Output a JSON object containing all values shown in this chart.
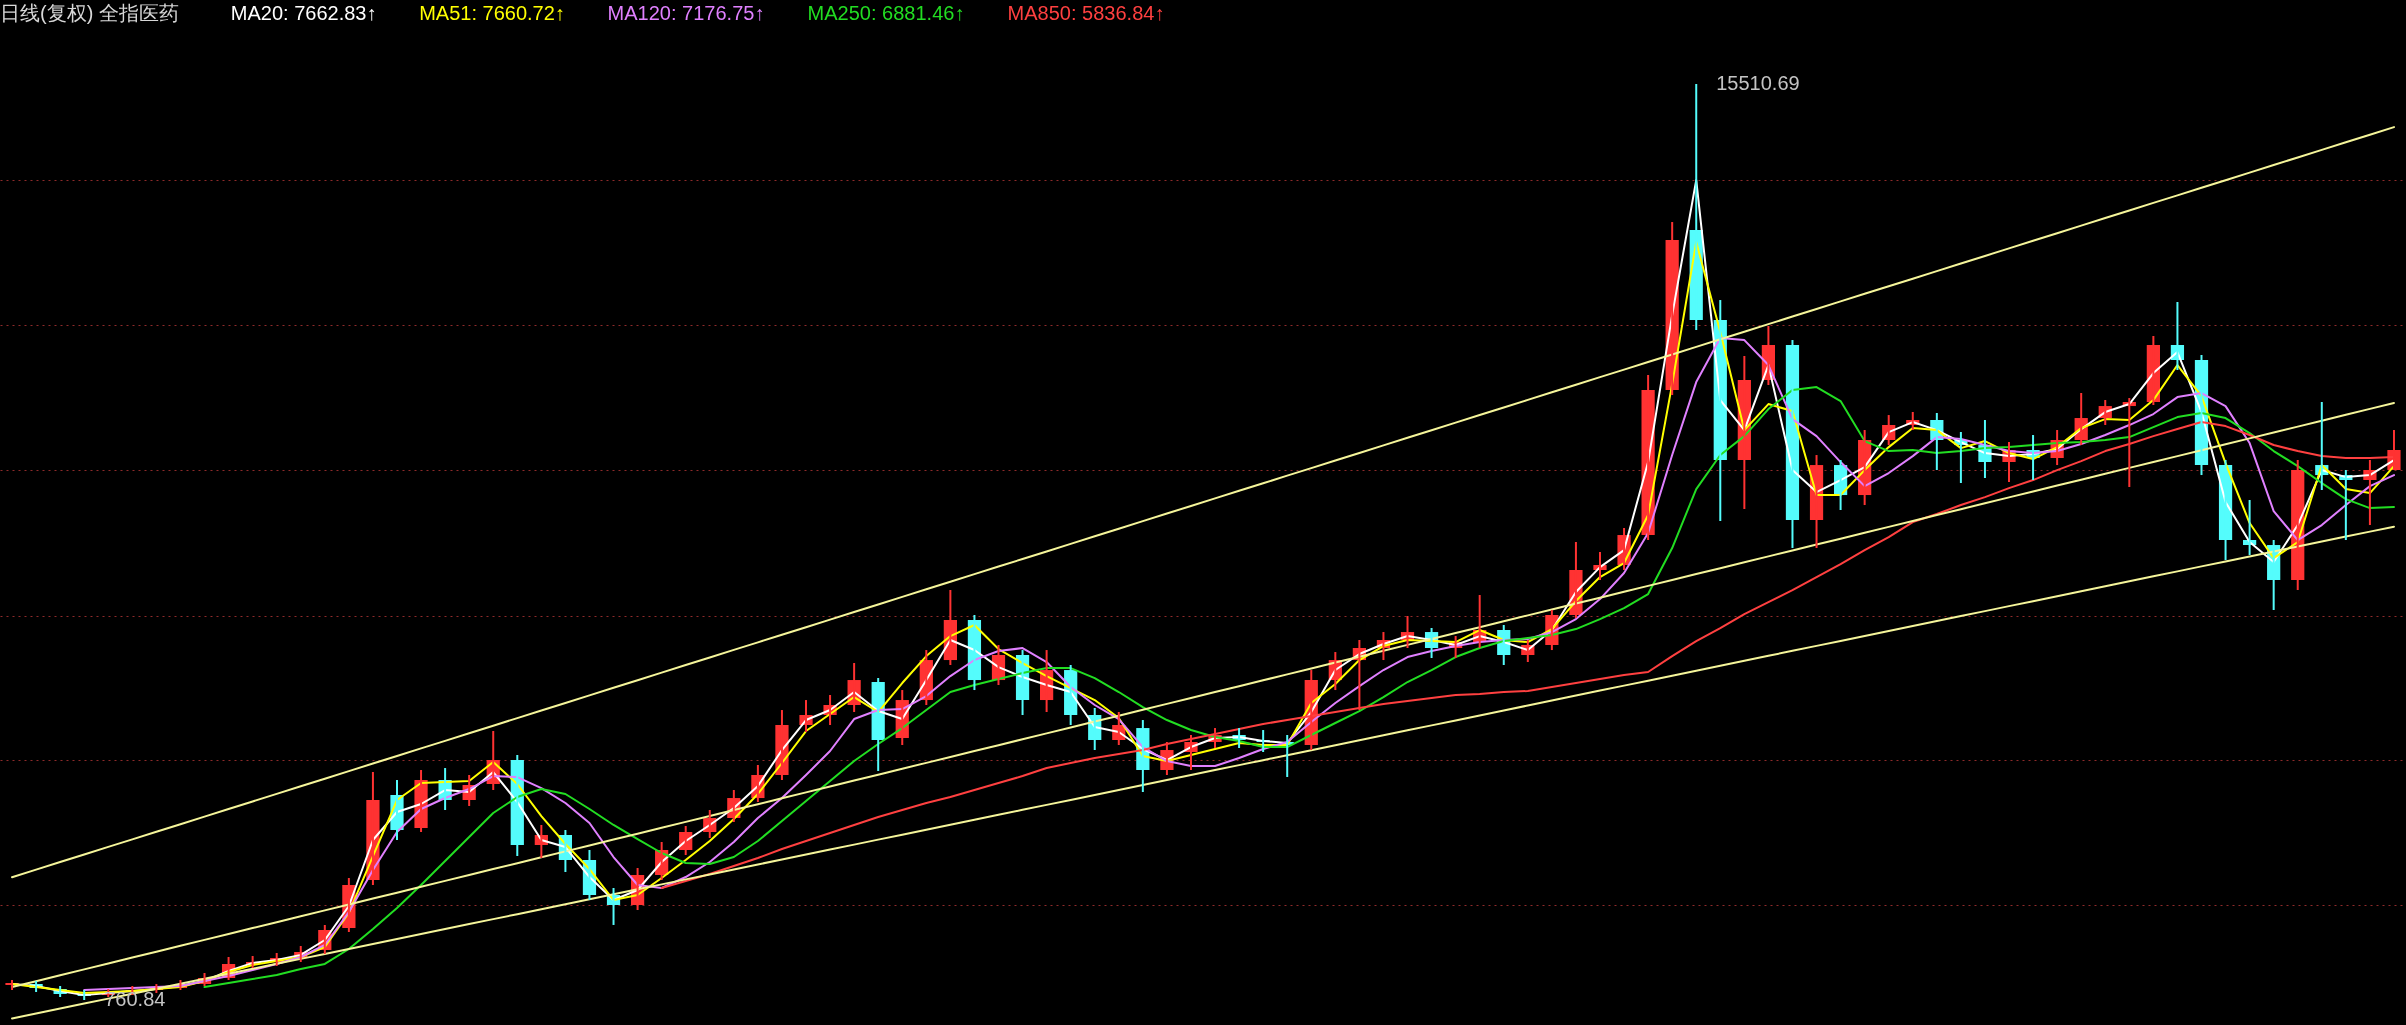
{
  "chart_data": {
    "type": "candlestick",
    "title": "日线(复权) 全指医药",
    "categories": [
      null,
      null,
      null,
      null,
      null,
      null,
      null,
      null,
      null,
      null,
      null,
      null,
      null,
      null,
      null,
      null,
      null,
      null,
      null,
      null,
      null,
      null,
      null,
      null,
      null,
      null,
      null,
      null,
      null,
      null,
      null,
      null,
      null,
      null,
      null,
      null,
      null,
      null,
      null,
      null,
      null,
      null,
      null,
      null,
      null,
      null,
      null,
      null,
      null,
      null,
      null,
      null,
      null,
      null,
      null,
      null,
      null,
      null,
      null,
      null,
      null,
      null,
      null,
      null,
      null,
      null,
      null,
      null,
      null,
      null,
      null,
      null,
      null,
      null,
      null,
      null,
      null,
      null,
      null,
      null,
      null,
      null,
      null,
      null,
      null,
      null,
      null,
      null,
      null,
      null,
      null,
      null,
      null,
      null,
      null,
      null,
      null,
      null,
      null,
      null
    ],
    "yticks": [
      {
        "value": 2284,
        "label": null
      },
      {
        "value": 4622,
        "label": null
      },
      {
        "value": 6950,
        "label": null
      },
      {
        "value": 9295,
        "label": null
      },
      {
        "value": 11630,
        "label": null
      },
      {
        "value": 13964,
        "label": null
      }
    ],
    "grid": "y",
    "legend": "top left",
    "annotations": [
      "15510.69",
      "760.84"
    ],
    "ohlc": [
      [
        1002,
        1083,
        922,
        1035
      ],
      [
        1018,
        1067,
        890,
        954
      ],
      [
        938,
        986,
        809,
        857
      ],
      [
        857,
        922,
        760.84,
        825
      ],
      [
        841,
        938,
        809,
        890
      ],
      [
        890,
        986,
        841,
        922
      ],
      [
        922,
        1018,
        874,
        954
      ],
      [
        954,
        1083,
        922,
        1018
      ],
      [
        1018,
        1196,
        986,
        1115
      ],
      [
        1115,
        1453,
        1083,
        1341
      ],
      [
        1341,
        1469,
        1276,
        1373
      ],
      [
        1373,
        1518,
        1308,
        1437
      ],
      [
        1437,
        1630,
        1373,
        1534
      ],
      [
        1566,
        1969,
        1502,
        1888
      ],
      [
        1920,
        2725,
        1856,
        2613
      ],
      [
        2693,
        4432,
        2613,
        3981
      ],
      [
        4062,
        4303,
        3337,
        3498
      ],
      [
        3530,
        4464,
        3466,
        4303
      ],
      [
        4303,
        4496,
        3820,
        3981
      ],
      [
        3981,
        4384,
        3885,
        4223
      ],
      [
        4239,
        5092,
        4142,
        4625
      ],
      [
        4625,
        4706,
        3080,
        3257
      ],
      [
        3257,
        3579,
        3047,
        3418
      ],
      [
        3418,
        3498,
        2822,
        3015
      ],
      [
        3015,
        3176,
        2371,
        2452
      ],
      [
        2452,
        2564,
        1969,
        2291
      ],
      [
        2291,
        2886,
        2210,
        2774
      ],
      [
        2774,
        3305,
        2693,
        3176
      ],
      [
        3176,
        3563,
        3096,
        3466
      ],
      [
        3466,
        3820,
        3369,
        3691
      ],
      [
        3691,
        4142,
        3627,
        4013
      ],
      [
        4013,
        4545,
        3949,
        4384
      ],
      [
        4384,
        5430,
        4303,
        5189
      ],
      [
        5189,
        5591,
        5076,
        5350
      ],
      [
        5350,
        5672,
        5189,
        5511
      ],
      [
        5511,
        6187,
        5398,
        5913
      ],
      [
        5881,
        5946,
        4448,
        4947
      ],
      [
        4980,
        5752,
        4867,
        5591
      ],
      [
        5591,
        6396,
        5511,
        6235
      ],
      [
        6235,
        7363,
        6155,
        6880
      ],
      [
        6880,
        6960,
        5752,
        5913
      ],
      [
        5913,
        6477,
        5833,
        6316
      ],
      [
        6316,
        6396,
        5350,
        5591
      ],
      [
        5591,
        6396,
        5398,
        6074
      ],
      [
        6074,
        6155,
        5189,
        5350
      ],
      [
        5350,
        5463,
        4786,
        4947
      ],
      [
        4947,
        5398,
        4867,
        5189
      ],
      [
        5140,
        5269,
        4110,
        4464
      ],
      [
        4464,
        4915,
        4384,
        4786
      ],
      [
        4754,
        5028,
        4464,
        4915
      ],
      [
        4915,
        5140,
        4819,
        5028
      ],
      [
        5028,
        5140,
        4819,
        4947
      ],
      [
        4947,
        5108,
        4754,
        4915
      ],
      [
        4915,
        5028,
        4352,
        4867
      ],
      [
        4867,
        6074,
        4786,
        5913
      ],
      [
        5913,
        6364,
        5752,
        6235
      ],
      [
        6235,
        6558,
        5430,
        6429
      ],
      [
        6429,
        6686,
        6235,
        6558
      ],
      [
        6558,
        6944,
        6429,
        6686
      ],
      [
        6686,
        6751,
        6268,
        6429
      ],
      [
        6429,
        6622,
        6268,
        6525
      ],
      [
        6525,
        7282,
        6429,
        6719
      ],
      [
        6719,
        6799,
        6155,
        6316
      ],
      [
        6316,
        6558,
        6203,
        6477
      ],
      [
        6477,
        7041,
        6396,
        6960
      ],
      [
        6960,
        8136,
        6912,
        7685
      ],
      [
        7685,
        7975,
        7524,
        7765
      ],
      [
        7765,
        8361,
        7685,
        8248
      ],
      [
        8248,
        10825,
        8168,
        10583
      ],
      [
        10583,
        13288,
        10503,
        12998
      ],
      [
        13159,
        15510.69,
        11549,
        11710
      ],
      [
        11710,
        12032,
        8474,
        9456
      ],
      [
        9456,
        11131,
        8667,
        10744
      ],
      [
        10744,
        11614,
        10664,
        11308
      ],
      [
        11308,
        11388,
        8039,
        8490
      ],
      [
        8490,
        9536,
        8039,
        9375
      ],
      [
        9375,
        9456,
        8651,
        8892
      ],
      [
        8892,
        9939,
        8731,
        9778
      ],
      [
        9778,
        10180,
        9697,
        10020
      ],
      [
        10020,
        10229,
        9939,
        10100
      ],
      [
        10100,
        10213,
        9295,
        9778
      ],
      [
        9778,
        9907,
        9086,
        9697
      ],
      [
        9697,
        10100,
        9166,
        9424
      ],
      [
        9424,
        9746,
        9102,
        9617
      ],
      [
        9617,
        9858,
        9134,
        9488
      ],
      [
        9488,
        9939,
        9375,
        9778
      ],
      [
        9778,
        10535,
        9697,
        10132
      ],
      [
        10132,
        10422,
        10020,
        10325
      ],
      [
        10325,
        10454,
        9021,
        10390
      ],
      [
        10390,
        11453,
        10342,
        11308
      ],
      [
        11308,
        12000,
        10905,
        11066
      ],
      [
        11066,
        11147,
        9214,
        9375
      ],
      [
        9375,
        9456,
        7846,
        8168
      ],
      [
        8168,
        8812,
        7926,
        8087
      ],
      [
        8087,
        8168,
        7041,
        7524
      ],
      [
        7524,
        9456,
        7363,
        9295
      ],
      [
        9375,
        10390,
        8973,
        9214
      ],
      [
        9214,
        9295,
        8168,
        9134
      ],
      [
        9134,
        9456,
        8409,
        9295
      ],
      [
        9295,
        9939,
        9295,
        9617
      ]
    ],
    "colors": [
      "#ff3232",
      "#54fcfc",
      "#54fcfc",
      "#54fcfc",
      "#ff3232",
      "#ff3232",
      "#ff3232",
      "#ff3232",
      "#ff3232",
      "#ff3232",
      "#ff3232",
      "#ff3232",
      "#ff3232",
      "#ff3232",
      "#ff3232",
      "#ff3232",
      "#54fcfc",
      "#ff3232",
      "#54fcfc",
      "#ff3232",
      "#ff3232",
      "#54fcfc",
      "#ff3232",
      "#54fcfc",
      "#54fcfc",
      "#54fcfc",
      "#ff3232",
      "#ff3232",
      "#ff3232",
      "#ff3232",
      "#ff3232",
      "#ff3232",
      "#ff3232",
      "#ff3232",
      "#ff3232",
      "#ff3232",
      "#54fcfc",
      "#ff3232",
      "#ff3232",
      "#ff3232",
      "#54fcfc",
      "#ff3232",
      "#54fcfc",
      "#ff3232",
      "#54fcfc",
      "#54fcfc",
      "#ff3232",
      "#54fcfc",
      "#ff3232",
      "#ff3232",
      "#ff3232",
      "#54fcfc",
      "#54fcfc",
      "#54fcfc",
      "#ff3232",
      "#ff3232",
      "#ff3232",
      "#ff3232",
      "#ff3232",
      "#54fcfc",
      "#ff3232",
      "#ff3232",
      "#54fcfc",
      "#ff3232",
      "#ff3232",
      "#ff3232",
      "#ff3232",
      "#ff3232",
      "#ff3232",
      "#ff3232",
      "#54fcfc",
      "#54fcfc",
      "#ff3232",
      "#ff3232",
      "#54fcfc",
      "#ff3232",
      "#54fcfc",
      "#ff3232",
      "#ff3232",
      "#ff3232",
      "#54fcfc",
      "#54fcfc",
      "#54fcfc",
      "#ff3232",
      "#54fcfc",
      "#ff3232",
      "#ff3232",
      "#ff3232",
      "#ff3232",
      "#ff3232",
      "#54fcfc",
      "#54fcfc",
      "#54fcfc",
      "#54fcfc",
      "#54fcfc",
      "#ff3232",
      "#54fcfc",
      "#54fcfc",
      "#ff3232",
      "#ff3232"
    ],
    "series": [
      {
        "type": "line",
        "name": "MA20: 7662.83↑",
        "color": "#ffffff",
        "values": [
          1019,
          986,
          906,
          841,
          874,
          906,
          938,
          986,
          1067,
          1228,
          1357,
          1405,
          1486,
          1727,
          2274,
          3337,
          3788,
          3917,
          4142,
          4110,
          4432,
          3949,
          3337,
          3224,
          2741,
          2371,
          2532,
          2983,
          3321,
          3579,
          3852,
          4206,
          4786,
          5269,
          5430,
          5720,
          5414,
          5285,
          5913,
          6557,
          6396,
          6122,
          5961,
          5833,
          5720,
          5156,
          5076,
          4802,
          4625,
          4834,
          4979,
          4995,
          4931,
          4899,
          5398,
          6074,
          6332,
          6493,
          6621,
          6557,
          6477,
          6621,
          6525,
          6396,
          6718,
          7330,
          7732,
          8006,
          9423,
          11790,
          13963,
          10421,
          9938,
          10985,
          9294,
          8940,
          9133,
          9342,
          9906,
          10067,
          9938,
          9745,
          9568,
          9519,
          9552,
          9632,
          9954,
          10228,
          10357,
          10856,
          11194,
          10228,
          8779,
          8135,
          7813,
          8409,
          9294,
          9181,
          9214,
          9455
        ]
      },
      {
        "type": "line",
        "name": "MA51: 7660.72↑",
        "color": "#ffff00",
        "values": [
          1019,
          970,
          922,
          874,
          890,
          906,
          938,
          970,
          1067,
          1212,
          1325,
          1389,
          1453,
          1614,
          2162,
          3079,
          3981,
          4255,
          4271,
          4287,
          4593,
          4239,
          3723,
          3273,
          2870,
          2371,
          2452,
          2725,
          3015,
          3321,
          3675,
          4078,
          4577,
          5092,
          5366,
          5639,
          5398,
          5865,
          6299,
          6621,
          6799,
          6412,
          6187,
          5977,
          5784,
          5591,
          5301,
          4689,
          4609,
          4706,
          4802,
          4899,
          4867,
          4867,
          5543,
          5849,
          6235,
          6460,
          6557,
          6541,
          6525,
          6718,
          6557,
          6525,
          6734,
          7185,
          7571,
          7797,
          8570,
          10679,
          12965,
          11516,
          9938,
          10357,
          10244,
          8892,
          8892,
          9294,
          9664,
          9970,
          9938,
          9648,
          9761,
          9568,
          9471,
          9664,
          9970,
          10115,
          10099,
          10421,
          10985,
          10485,
          9407,
          8441,
          7877,
          8135,
          9375,
          8988,
          8924,
          9358
        ]
      },
      {
        "type": "line",
        "name": "MA120: 7176.75↑",
        "color": "#e080ff",
        "values": [
          null,
          null,
          null,
          922,
          938,
          954,
          970,
          986,
          1067,
          1147,
          1244,
          1341,
          1453,
          1647,
          2178,
          2854,
          3466,
          3836,
          4013,
          4158,
          4367,
          4351,
          4174,
          3933,
          3611,
          3063,
          2613,
          2564,
          2741,
          2983,
          3305,
          3691,
          4013,
          4384,
          4770,
          5285,
          5430,
          5446,
          5655,
          5977,
          6235,
          6380,
          6428,
          6203,
          5800,
          5511,
          5285,
          4834,
          4609,
          4528,
          4528,
          4657,
          4802,
          4915,
          5237,
          5543,
          5816,
          6074,
          6283,
          6380,
          6460,
          6525,
          6557,
          6573,
          6686,
          6895,
          7217,
          7636,
          8280,
          9536,
          10711,
          11419,
          11387,
          10985,
          10115,
          9841,
          9423,
          9036,
          9246,
          9519,
          9825,
          9793,
          9697,
          9600,
          9568,
          9600,
          9713,
          9858,
          10019,
          10196,
          10469,
          10534,
          10324,
          9729,
          8634,
          8167,
          8409,
          8731,
          9036,
          9214
        ]
      },
      {
        "type": "line",
        "name": "MA250: 6881.46↑",
        "color": "#22dd22",
        "values": [
          null,
          null,
          null,
          null,
          null,
          null,
          null,
          null,
          970,
          1035,
          1099,
          1164,
          1260,
          1341,
          1582,
          1904,
          2242,
          2613,
          2999,
          3385,
          3772,
          4029,
          4158,
          4078,
          3836,
          3579,
          3353,
          3128,
          2967,
          2951,
          3063,
          3321,
          3643,
          3965,
          4287,
          4609,
          4883,
          5140,
          5430,
          5720,
          5833,
          5929,
          6026,
          6106,
          6106,
          5945,
          5720,
          5478,
          5269,
          5108,
          4995,
          4931,
          4834,
          4834,
          5028,
          5221,
          5414,
          5639,
          5881,
          6074,
          6283,
          6428,
          6541,
          6589,
          6638,
          6734,
          6895,
          7072,
          7298,
          8038,
          8988,
          9536,
          9841,
          10276,
          10582,
          10630,
          10405,
          9761,
          9600,
          9616,
          9568,
          9600,
          9648,
          9664,
          9697,
          9729,
          9745,
          9777,
          9825,
          9986,
          10147,
          10212,
          10131,
          9890,
          9600,
          9358,
          9085,
          8827,
          8682,
          8698
        ]
      },
      {
        "type": "line",
        "name": "MA850: 5836.84↑",
        "color": "#ff4040",
        "values": [
          null,
          null,
          null,
          null,
          null,
          null,
          null,
          null,
          null,
          null,
          null,
          null,
          null,
          null,
          null,
          null,
          null,
          null,
          null,
          null,
          null,
          null,
          null,
          null,
          null,
          null,
          null,
          2564,
          2677,
          2790,
          2918,
          3047,
          3192,
          3321,
          3450,
          3579,
          3707,
          3820,
          3933,
          4029,
          4142,
          4255,
          4367,
          4496,
          4577,
          4657,
          4722,
          4786,
          4883,
          4963,
          5044,
          5124,
          5205,
          5269,
          5333,
          5398,
          5462,
          5527,
          5575,
          5623,
          5672,
          5688,
          5720,
          5736,
          5800,
          5865,
          5929,
          5994,
          6042,
          6299,
          6541,
          6750,
          6976,
          7169,
          7362,
          7571,
          7781,
          8006,
          8215,
          8457,
          8586,
          8731,
          8859,
          9004,
          9133,
          9294,
          9439,
          9600,
          9713,
          9841,
          9954,
          10067,
          10002,
          9858,
          9697,
          9600,
          9519,
          9487,
          9487,
          9503
        ]
      },
      {
        "type": "line",
        "color": "#f5f59a",
        "values": [
          2738,
          2860,
          2982,
          3104,
          3226,
          3348,
          3470,
          3592,
          3714,
          3836,
          3958,
          4080,
          4202,
          4324,
          4446,
          4568,
          4690,
          4812,
          4934,
          5056,
          5178,
          5300,
          5422,
          5544,
          5666,
          5788,
          5910,
          6032,
          6154,
          6276,
          6398,
          6520,
          6642,
          6764,
          6886,
          7008,
          7130,
          7252,
          7374,
          7496,
          7618,
          7740,
          7862,
          7984,
          8106,
          8228,
          8350,
          8472,
          8594,
          8716,
          8838,
          8960,
          9082,
          9204,
          9326,
          9448,
          9570,
          9692,
          9814,
          9936,
          10058,
          10180,
          10302,
          10424,
          10546,
          10668,
          10790,
          10912,
          11034,
          11156,
          11278,
          11400,
          11522,
          11644,
          11766,
          11888,
          12010,
          12132,
          12254,
          12376,
          12498,
          12620,
          12742,
          12864,
          12986,
          13108,
          13230,
          13352,
          13474,
          13596,
          13718,
          13840,
          13962,
          14084,
          14206,
          14328,
          14450,
          14572,
          14694,
          14816
        ]
      },
      {
        "type": "line",
        "color": "#f5f59a",
        "values": [
          969,
          1064,
          1159,
          1254,
          1349,
          1444,
          1539,
          1634,
          1729,
          1824,
          1919,
          2014,
          2109,
          2204,
          2299,
          2394,
          2489,
          2584,
          2679,
          2774,
          2869,
          2964,
          3059,
          3154,
          3249,
          3344,
          3439,
          3534,
          3629,
          3724,
          3819,
          3914,
          4009,
          4104,
          4199,
          4294,
          4389,
          4484,
          4579,
          4674,
          4769,
          4864,
          4959,
          5054,
          5149,
          5244,
          5339,
          5434,
          5529,
          5624,
          5719,
          5814,
          5909,
          6004,
          6099,
          6194,
          6289,
          6384,
          6479,
          6574,
          6669,
          6764,
          6859,
          6954,
          7049,
          7144,
          7239,
          7334,
          7429,
          7524,
          7619,
          7714,
          7809,
          7904,
          7999,
          8094,
          8189,
          8284,
          8379,
          8474,
          8569,
          8664,
          8759,
          8854,
          8949,
          9044,
          9139,
          9234,
          9329,
          9424,
          9519,
          9614,
          9709,
          9804,
          9899,
          9994,
          10089,
          10184,
          10279,
          10374
        ]
      },
      {
        "type": "line",
        "color": "#f5f59a",
        "values": [
          463,
          543,
          623,
          703,
          783,
          863,
          943,
          1023,
          1103,
          1183,
          1263,
          1343,
          1423,
          1503,
          1583,
          1663,
          1743,
          1823,
          1903,
          1983,
          2063,
          2143,
          2223,
          2303,
          2383,
          2463,
          2543,
          2623,
          2703,
          2783,
          2863,
          2943,
          3023,
          3103,
          3183,
          3263,
          3343,
          3423,
          3503,
          3583,
          3663,
          3743,
          3823,
          3903,
          3983,
          4063,
          4143,
          4223,
          4303,
          4383,
          4463,
          4543,
          4623,
          4703,
          4783,
          4863,
          4943,
          5023,
          5103,
          5183,
          5263,
          5343,
          5423,
          5503,
          5583,
          5663,
          5743,
          5823,
          5903,
          5983,
          6063,
          6143,
          6223,
          6303,
          6383,
          6463,
          6543,
          6623,
          6703,
          6783,
          6863,
          6943,
          7023,
          7103,
          7183,
          7263,
          7343,
          7423,
          7503,
          7583,
          7663,
          7743,
          7823,
          7903,
          7983,
          8063,
          8143,
          8223,
          8303,
          8383
        ]
      }
    ]
  }
}
